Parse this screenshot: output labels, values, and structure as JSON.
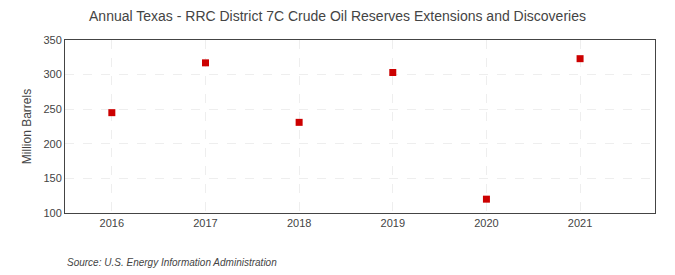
{
  "chart_data": {
    "type": "scatter",
    "title": "Annual Texas - RRC District 7C Crude Oil Reserves Extensions and Discoveries",
    "ylabel": "Million Barrels",
    "annotation": "Source: U.S. Energy Information Administration",
    "x": [
      2016,
      2017,
      2018,
      2019,
      2020,
      2021
    ],
    "values": [
      245,
      317,
      231,
      303,
      120,
      323
    ],
    "xlim": [
      2015.5,
      2021.8
    ],
    "xticks": [
      2016,
      2017,
      2018,
      2019,
      2020,
      2021
    ],
    "ylim": [
      100,
      350
    ],
    "yticks": [
      100,
      150,
      200,
      250,
      300,
      350
    ],
    "color": "#cc0000",
    "marker": "square",
    "grid": true
  }
}
